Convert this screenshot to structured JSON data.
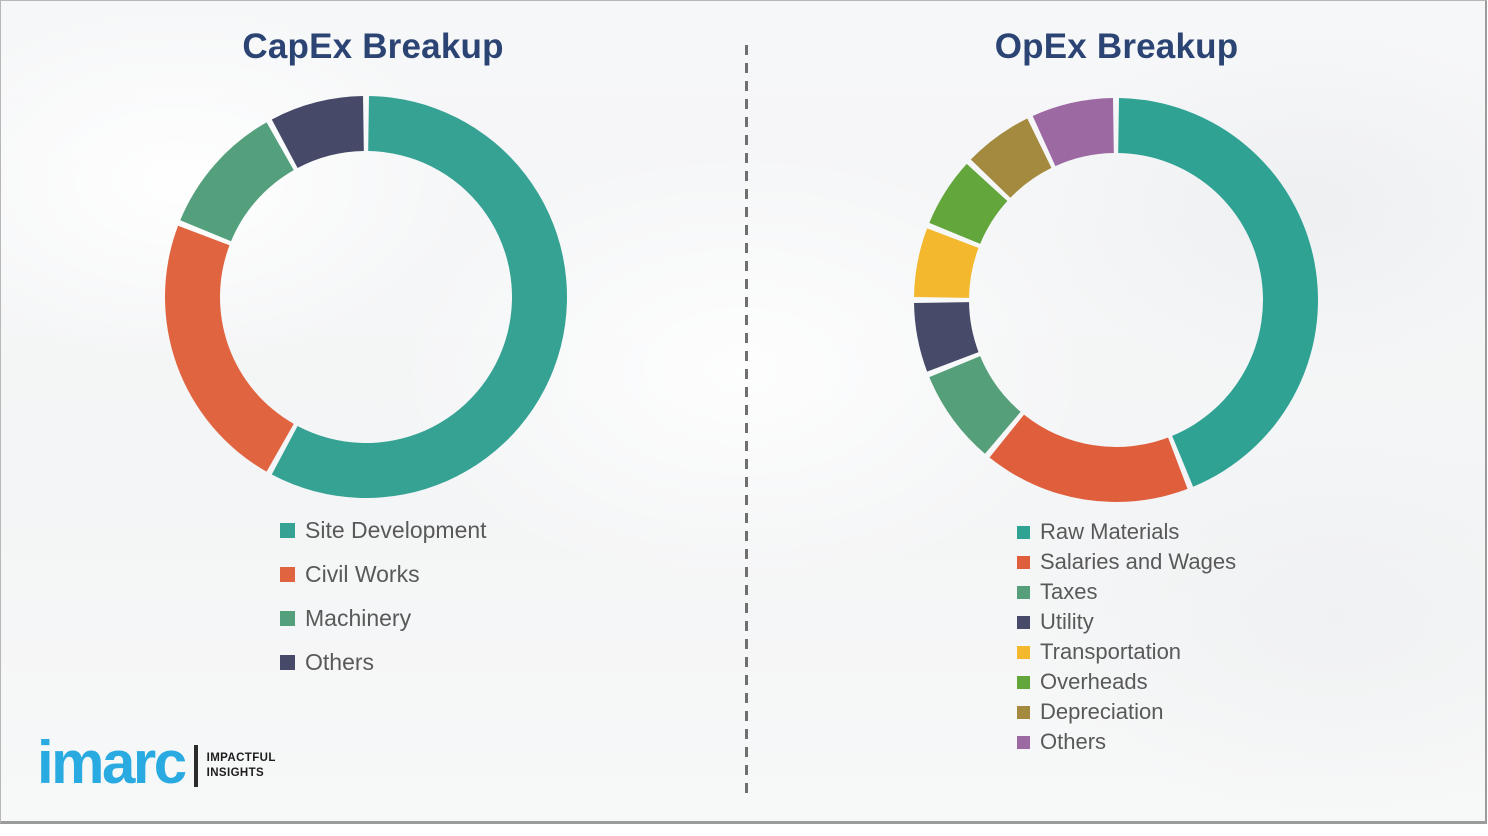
{
  "page": {
    "background_color": "#f6f7f8",
    "divider_color": "#6f6f6f",
    "title_text_color": "#2b4473",
    "legend_text_color": "#595959"
  },
  "logo": {
    "brand": "imarc",
    "tagline_line1": "IMPACTFUL",
    "tagline_line2": "INSIGHTS",
    "brand_color": "#29ABE2",
    "tagline_color": "#1d1d1f"
  },
  "chart_data": [
    {
      "type": "pie",
      "subtype": "donut",
      "title": "CapEx Breakup",
      "categories": [
        "Site Development",
        "Civil Works",
        "Machinery",
        "Others"
      ],
      "values": [
        58,
        23,
        11,
        8
      ],
      "colors": [
        "#35A294",
        "#E0643F",
        "#55A07C",
        "#464A68"
      ],
      "start_angle_deg": 0,
      "direction": "clockwise",
      "data_labels": false,
      "legend_position": "below-chart-left"
    },
    {
      "type": "pie",
      "subtype": "donut",
      "title": "OpEx Breakup",
      "categories": [
        "Raw Materials",
        "Salaries and Wages",
        "Taxes",
        "Utility",
        "Transportation",
        "Overheads",
        "Depreciation",
        "Others"
      ],
      "values": [
        44,
        17,
        8,
        6,
        6,
        6,
        6,
        7
      ],
      "colors": [
        "#2FA294",
        "#DF5F3D",
        "#569F7B",
        "#474A68",
        "#F3B82E",
        "#62A63C",
        "#A48A3F",
        "#9D69A3"
      ],
      "start_angle_deg": 0,
      "direction": "clockwise",
      "data_labels": false,
      "legend_position": "below-chart-left"
    }
  ]
}
